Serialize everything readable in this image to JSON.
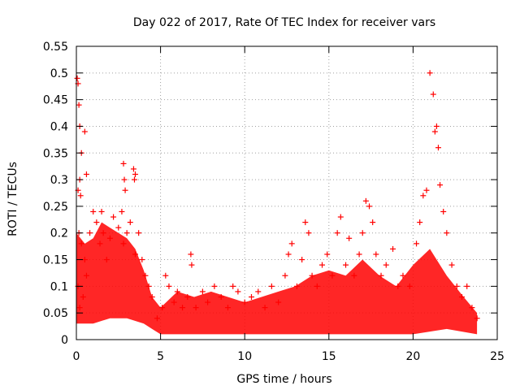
{
  "chart_data": {
    "type": "scatter",
    "title": "Day 022 of 2017, Rate Of TEC Index for receiver vars",
    "xlabel": "GPS time / hours",
    "ylabel": "ROTI / TECUs",
    "xlim": [
      0,
      25
    ],
    "ylim": [
      0,
      0.55
    ],
    "x_ticks": [
      "0",
      "5",
      "10",
      "15",
      "20",
      "25"
    ],
    "y_ticks": [
      "0",
      "0.05",
      "0.1",
      "0.15",
      "0.2",
      "0.25",
      "0.3",
      "0.35",
      "0.4",
      "0.45",
      "0.5",
      "0.55"
    ],
    "grid": true,
    "marker": "+",
    "color": "#ff0000",
    "series": [
      {
        "points": [
          [
            0.05,
            0.49
          ],
          [
            0.1,
            0.48
          ],
          [
            0.15,
            0.44
          ],
          [
            0.2,
            0.4
          ],
          [
            0.3,
            0.35
          ],
          [
            0.5,
            0.39
          ],
          [
            0.6,
            0.31
          ],
          [
            0.2,
            0.3
          ],
          [
            0.1,
            0.28
          ],
          [
            0.25,
            0.27
          ],
          [
            0.15,
            0.2
          ],
          [
            0.3,
            0.18
          ],
          [
            0.5,
            0.15
          ],
          [
            0.1,
            0.1
          ],
          [
            0.2,
            0.06
          ],
          [
            0.4,
            0.08
          ],
          [
            0.6,
            0.12
          ],
          [
            0.8,
            0.2
          ],
          [
            1.0,
            0.24
          ],
          [
            1.2,
            0.22
          ],
          [
            1.4,
            0.18
          ],
          [
            1.5,
            0.24
          ],
          [
            1.6,
            0.2
          ],
          [
            1.8,
            0.15
          ],
          [
            2.0,
            0.19
          ],
          [
            2.2,
            0.23
          ],
          [
            2.5,
            0.21
          ],
          [
            2.7,
            0.24
          ],
          [
            2.8,
            0.18
          ],
          [
            3.0,
            0.2
          ],
          [
            2.8,
            0.33
          ],
          [
            2.85,
            0.3
          ],
          [
            2.9,
            0.28
          ],
          [
            3.4,
            0.32
          ],
          [
            3.5,
            0.31
          ],
          [
            3.45,
            0.3
          ],
          [
            3.2,
            0.22
          ],
          [
            3.5,
            0.16
          ],
          [
            3.7,
            0.2
          ],
          [
            3.9,
            0.15
          ],
          [
            4.1,
            0.12
          ],
          [
            4.3,
            0.1
          ],
          [
            4.5,
            0.08
          ],
          [
            4.8,
            0.04
          ],
          [
            5.1,
            0.06
          ],
          [
            5.3,
            0.12
          ],
          [
            5.5,
            0.1
          ],
          [
            5.8,
            0.07
          ],
          [
            6.0,
            0.09
          ],
          [
            6.3,
            0.06
          ],
          [
            6.6,
            0.08
          ],
          [
            6.8,
            0.16
          ],
          [
            6.85,
            0.14
          ],
          [
            7.1,
            0.06
          ],
          [
            7.5,
            0.09
          ],
          [
            7.8,
            0.07
          ],
          [
            8.2,
            0.1
          ],
          [
            8.6,
            0.08
          ],
          [
            9.0,
            0.06
          ],
          [
            9.3,
            0.1
          ],
          [
            9.6,
            0.09
          ],
          [
            10.0,
            0.07
          ],
          [
            10.4,
            0.08
          ],
          [
            10.8,
            0.09
          ],
          [
            11.2,
            0.06
          ],
          [
            11.6,
            0.1
          ],
          [
            12.0,
            0.07
          ],
          [
            12.4,
            0.12
          ],
          [
            12.6,
            0.16
          ],
          [
            12.8,
            0.18
          ],
          [
            13.1,
            0.1
          ],
          [
            13.4,
            0.15
          ],
          [
            13.6,
            0.22
          ],
          [
            13.8,
            0.2
          ],
          [
            14.0,
            0.12
          ],
          [
            14.3,
            0.1
          ],
          [
            14.6,
            0.14
          ],
          [
            14.9,
            0.16
          ],
          [
            15.2,
            0.12
          ],
          [
            15.5,
            0.2
          ],
          [
            15.7,
            0.23
          ],
          [
            16.0,
            0.14
          ],
          [
            16.2,
            0.19
          ],
          [
            16.5,
            0.12
          ],
          [
            16.8,
            0.16
          ],
          [
            17.0,
            0.2
          ],
          [
            17.2,
            0.26
          ],
          [
            17.4,
            0.25
          ],
          [
            17.6,
            0.22
          ],
          [
            17.8,
            0.16
          ],
          [
            18.1,
            0.12
          ],
          [
            18.4,
            0.14
          ],
          [
            18.8,
            0.17
          ],
          [
            19.1,
            0.1
          ],
          [
            19.4,
            0.12
          ],
          [
            19.8,
            0.1
          ],
          [
            20.2,
            0.18
          ],
          [
            20.4,
            0.22
          ],
          [
            20.6,
            0.27
          ],
          [
            20.8,
            0.28
          ],
          [
            21.0,
            0.5
          ],
          [
            21.2,
            0.46
          ],
          [
            21.3,
            0.39
          ],
          [
            21.4,
            0.4
          ],
          [
            21.5,
            0.36
          ],
          [
            21.6,
            0.29
          ],
          [
            21.8,
            0.24
          ],
          [
            22.0,
            0.2
          ],
          [
            22.3,
            0.14
          ],
          [
            22.6,
            0.1
          ],
          [
            22.9,
            0.08
          ],
          [
            23.2,
            0.1
          ],
          [
            23.5,
            0.06
          ],
          [
            23.8,
            0.04
          ]
        ]
      }
    ]
  }
}
